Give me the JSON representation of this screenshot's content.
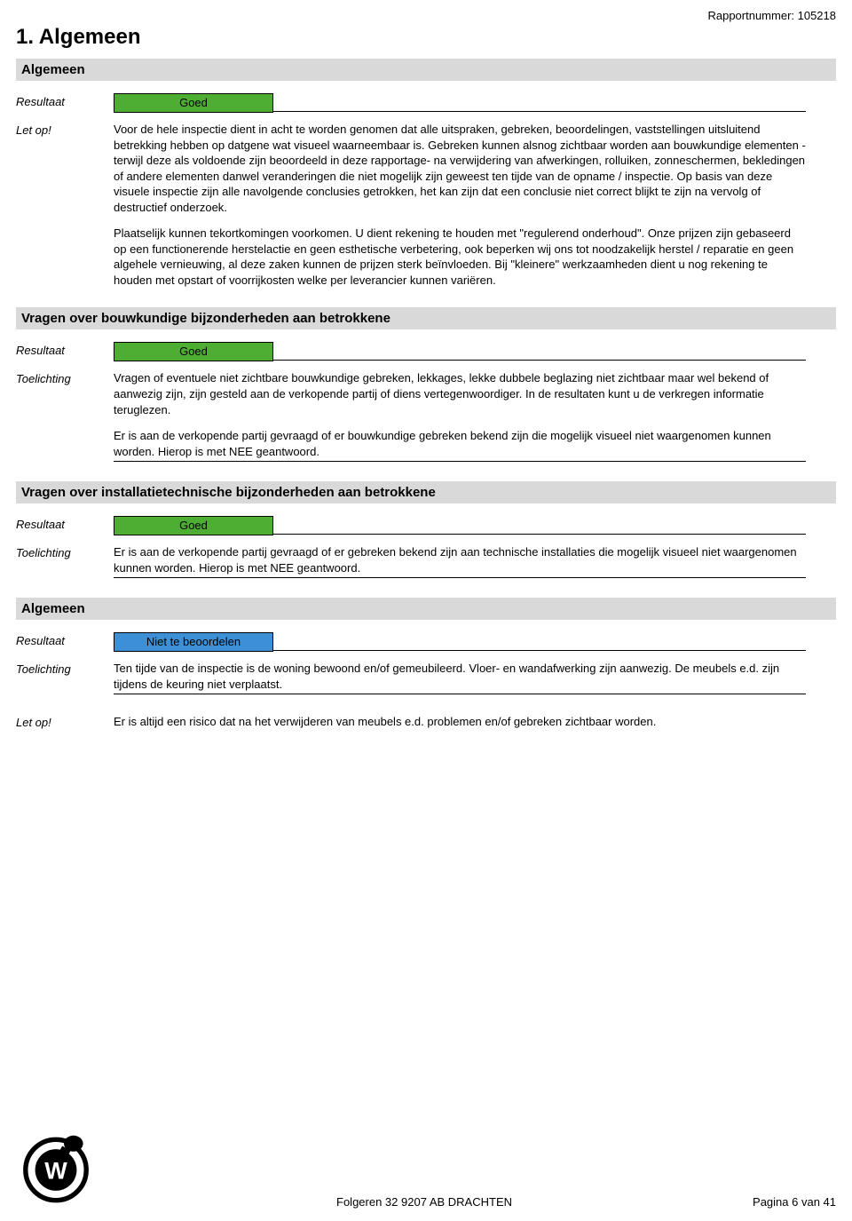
{
  "colors": {
    "section_bg": "#d9d9d9",
    "badge_good": "#4eae33",
    "badge_neutral": "#3d8fd6",
    "text": "#000000",
    "page_bg": "#ffffff"
  },
  "typography": {
    "base_font": "Arial",
    "base_size_pt": 10,
    "h1_size_pt": 18,
    "section_header_size_pt": 11
  },
  "header": {
    "report_label": "Rapportnummer: 105218",
    "page_title": "1. Algemeen"
  },
  "sections": [
    {
      "title": "Algemeen",
      "rows": [
        {
          "label": "Resultaat",
          "type": "badge",
          "badge_style": "good",
          "badge_text": "Goed"
        },
        {
          "label": "Let op!",
          "type": "paragraphs",
          "underlined": false,
          "paragraphs": [
            "Voor de hele inspectie dient in acht te worden genomen dat alle uitspraken, gebreken, beoordelingen, vaststellingen uitsluitend betrekking hebben op datgene wat visueel waarneembaar is. Gebreken kunnen alsnog zichtbaar worden aan bouwkundige elementen -terwijl deze als voldoende zijn beoordeeld in deze rapportage- na verwijdering van afwerkingen, rolluiken, zonneschermen, bekledingen of andere elementen danwel veranderingen die niet mogelijk zijn geweest ten tijde van de opname / inspectie. Op basis van deze visuele inspectie zijn alle navolgende conclusies getrokken, het kan zijn dat een conclusie niet correct blijkt te zijn na vervolg of destructief onderzoek.",
            "Plaatselijk kunnen tekortkomingen voorkomen. U dient rekening te houden met \"regulerend onderhoud\".  Onze prijzen zijn gebaseerd op een functionerende herstelactie en geen esthetische verbetering, ook beperken wij ons tot noodzakelijk herstel / reparatie en geen algehele vernieuwing, al deze zaken kunnen de prijzen sterk beïnvloeden. Bij \"kleinere\" werkzaamheden dient u nog rekening te houden met opstart of voorrijkosten welke per leverancier kunnen variëren."
          ]
        }
      ]
    },
    {
      "title": "Vragen over bouwkundige bijzonderheden aan betrokkene",
      "rows": [
        {
          "label": "Resultaat",
          "type": "badge",
          "badge_style": "good",
          "badge_text": "Goed"
        },
        {
          "label": "Toelichting",
          "type": "paragraphs",
          "underlined": true,
          "paragraphs": [
            "Vragen of eventuele niet zichtbare bouwkundige gebreken, lekkages, lekke dubbele beglazing niet zichtbaar maar wel bekend of aanwezig zijn, zijn gesteld aan de verkopende partij of diens vertegenwoordiger. In de resultaten kunt u de verkregen informatie teruglezen.",
            "Er is aan de verkopende partij gevraagd of er bouwkundige gebreken bekend zijn die mogelijk visueel niet waargenomen kunnen worden. Hierop is met NEE geantwoord."
          ]
        }
      ]
    },
    {
      "title": "Vragen over installatietechnische bijzonderheden aan betrokkene",
      "rows": [
        {
          "label": "Resultaat",
          "type": "badge",
          "badge_style": "good",
          "badge_text": "Goed"
        },
        {
          "label": "Toelichting",
          "type": "paragraphs",
          "underlined": true,
          "paragraphs": [
            "Er is aan de verkopende partij gevraagd of er gebreken bekend zijn aan technische installaties die mogelijk visueel niet waargenomen kunnen worden. Hierop is met NEE geantwoord."
          ]
        }
      ]
    },
    {
      "title": "Algemeen",
      "rows": [
        {
          "label": "Resultaat",
          "type": "badge",
          "badge_style": "neutral",
          "badge_text": "Niet te beoordelen"
        },
        {
          "label": "Toelichting",
          "type": "paragraphs",
          "underlined": true,
          "paragraphs": [
            "Ten tijde van de inspectie is de woning bewoond en/of gemeubileerd. Vloer- en wandafwerking zijn aanwezig. De meubels e.d. zijn tijdens de keuring niet verplaatst."
          ]
        },
        {
          "label": "Let op!",
          "type": "paragraphs",
          "underlined": false,
          "paragraphs": [
            "Er is altijd een risico dat na het verwijderen van meubels e.d. problemen en/of gebreken zichtbaar worden."
          ]
        }
      ]
    }
  ],
  "footer": {
    "address": "Folgeren 32 9207 AB DRACHTEN",
    "page_info": "Pagina 6 van 41"
  }
}
